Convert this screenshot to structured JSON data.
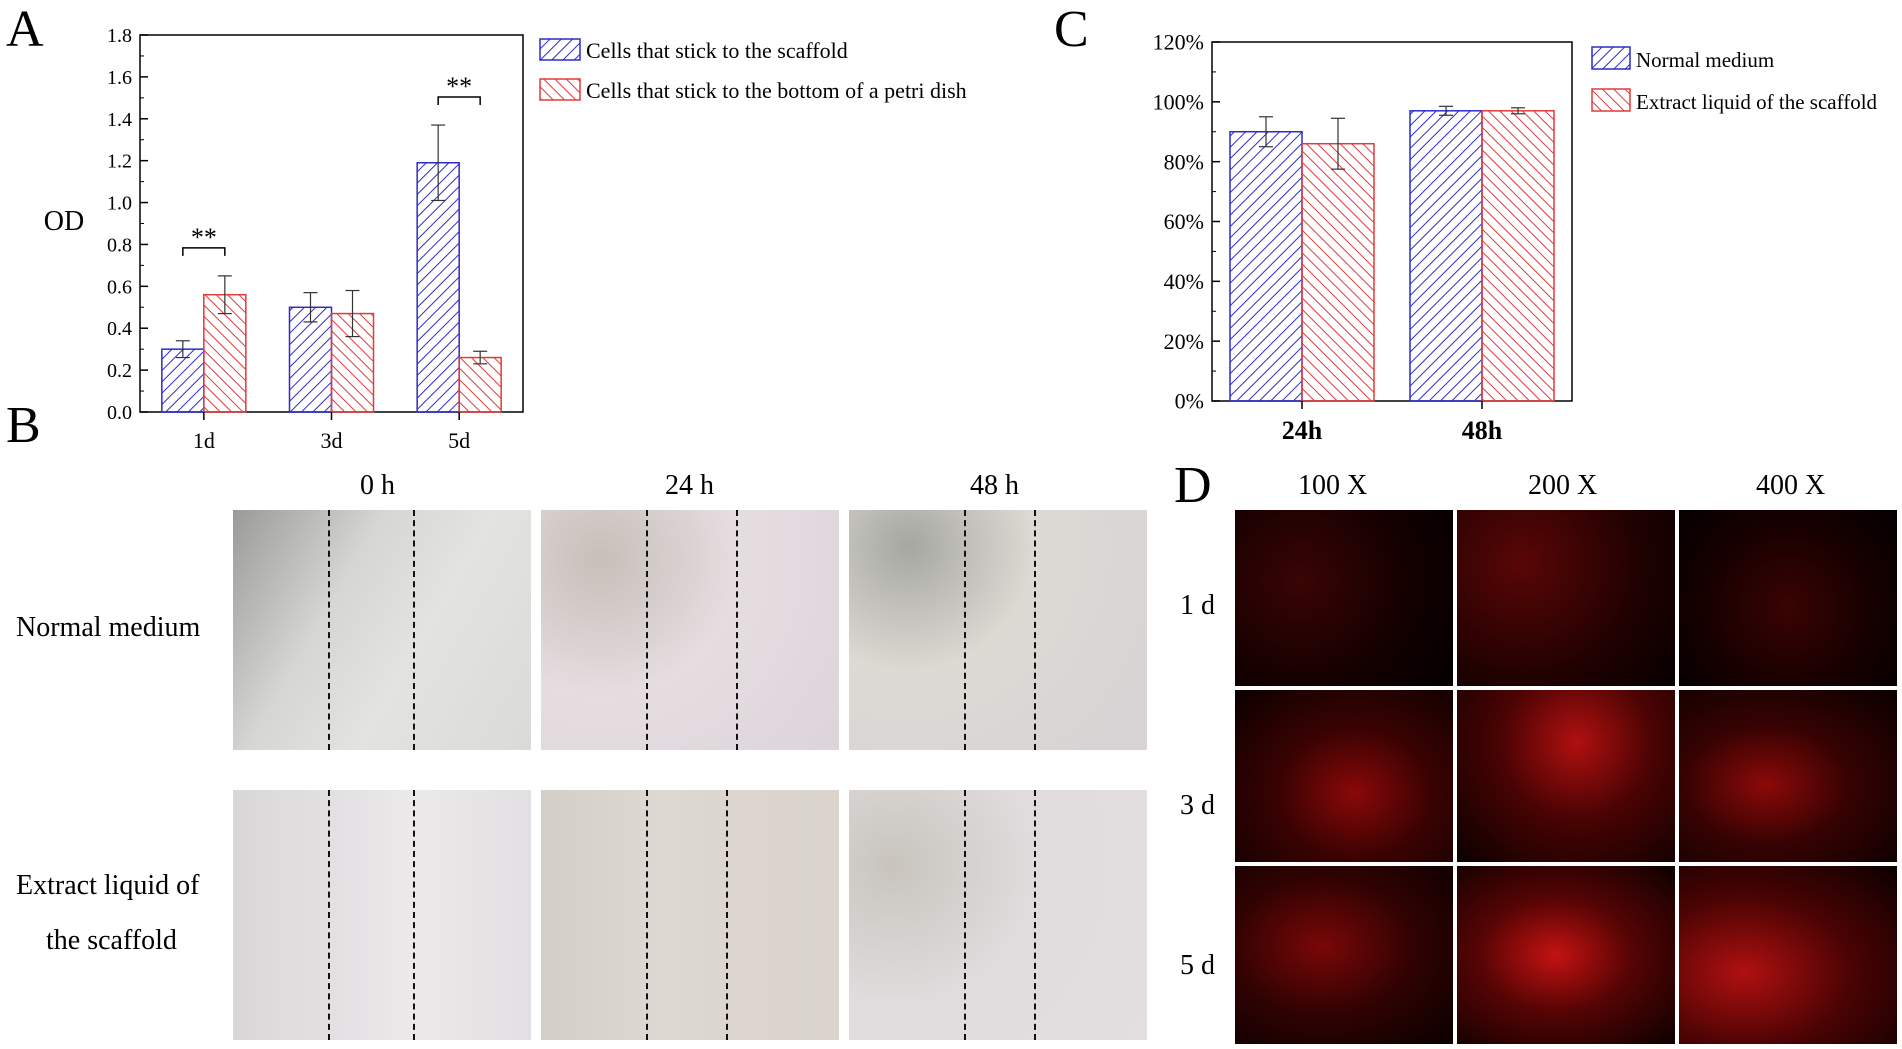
{
  "panels": {
    "a": {
      "letter": "A"
    },
    "b": {
      "letter": "B"
    },
    "c": {
      "letter": "C"
    },
    "d": {
      "letter": "D"
    }
  },
  "colors": {
    "blue": "#2d2dc8",
    "red": "#e03b3b"
  },
  "chart_data": [
    {
      "type": "bar",
      "panel": "A",
      "ylabel": "OD",
      "xlabel": "",
      "categories": [
        "1d",
        "3d",
        "5d"
      ],
      "ylim": [
        0,
        1.8
      ],
      "yticks": [
        "0.0",
        "0.2",
        "0.4",
        "0.6",
        "0.8",
        "1.0",
        "1.2",
        "1.4",
        "1.6",
        "1.8"
      ],
      "series": [
        {
          "name": "Cells that stick to the scaffold",
          "values": [
            0.3,
            0.5,
            1.19
          ],
          "errors": [
            0.04,
            0.07,
            0.18
          ],
          "color": "#2d2dc8",
          "hatch": "forward"
        },
        {
          "name": "Cells that stick to the bottom of a petri dish",
          "values": [
            0.56,
            0.47,
            0.26
          ],
          "errors": [
            0.09,
            0.11,
            0.03
          ],
          "color": "#e03b3b",
          "hatch": "backward"
        }
      ],
      "annotations": [
        {
          "text": "**",
          "category": "1d"
        },
        {
          "text": "**",
          "category": "5d"
        }
      ]
    },
    {
      "type": "bar",
      "panel": "C",
      "ylabel": "",
      "xlabel": "",
      "categories": [
        "24h",
        "48h"
      ],
      "ylim": [
        0,
        120
      ],
      "yticks": [
        "0%",
        "20%",
        "40%",
        "60%",
        "80%",
        "100%",
        "120%"
      ],
      "series": [
        {
          "name": "Normal medium",
          "values": [
            90,
            97
          ],
          "errors": [
            5,
            1.5
          ],
          "color": "#2d2dc8",
          "hatch": "forward"
        },
        {
          "name": "Extract liquid of the scaffold",
          "values": [
            86,
            97
          ],
          "errors": [
            8.5,
            1
          ],
          "color": "#e03b3b",
          "hatch": "backward"
        }
      ]
    }
  ],
  "panel_b": {
    "columns": [
      "0 h",
      "24 h",
      "48 h"
    ],
    "rows": [
      "Normal medium",
      "Extract liquid of",
      "the scaffold"
    ]
  },
  "panel_d": {
    "columns": [
      "100 X",
      "200 X",
      "400 X"
    ],
    "rows": [
      "1 d",
      "3 d",
      "5 d"
    ]
  }
}
